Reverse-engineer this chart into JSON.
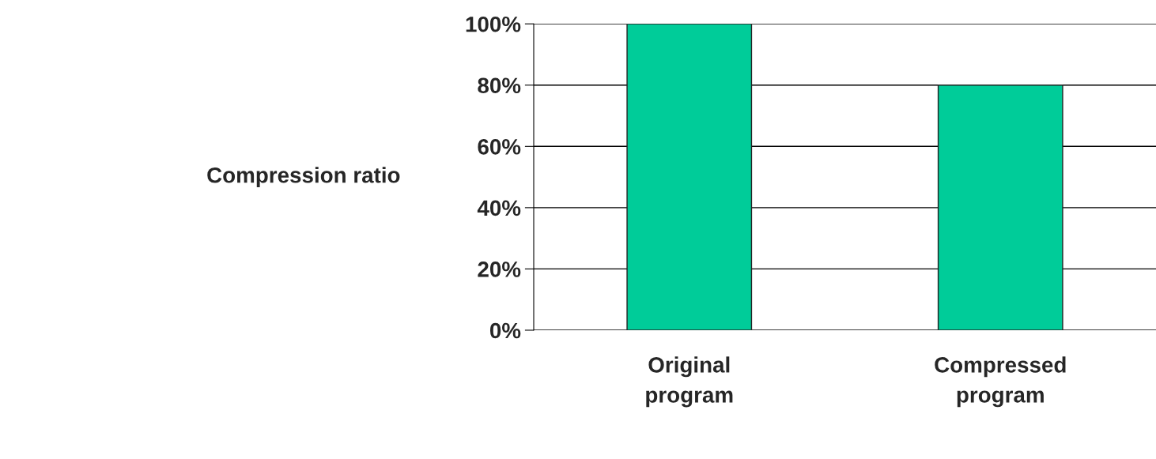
{
  "chart_data": {
    "type": "bar",
    "ylabel": "Compression ratio",
    "categories": [
      "Original program",
      "Compressed program"
    ],
    "values": [
      100,
      80
    ],
    "color": "#00cc99",
    "ylim": [
      0,
      100
    ],
    "yticks": [
      {
        "value": 0,
        "label": "0%"
      },
      {
        "value": 20,
        "label": "20%"
      },
      {
        "value": 40,
        "label": "40%"
      },
      {
        "value": 60,
        "label": "60%"
      },
      {
        "value": 80,
        "label": "80%"
      },
      {
        "value": 100,
        "label": "100%"
      }
    ],
    "grid": "y",
    "legend": false
  }
}
